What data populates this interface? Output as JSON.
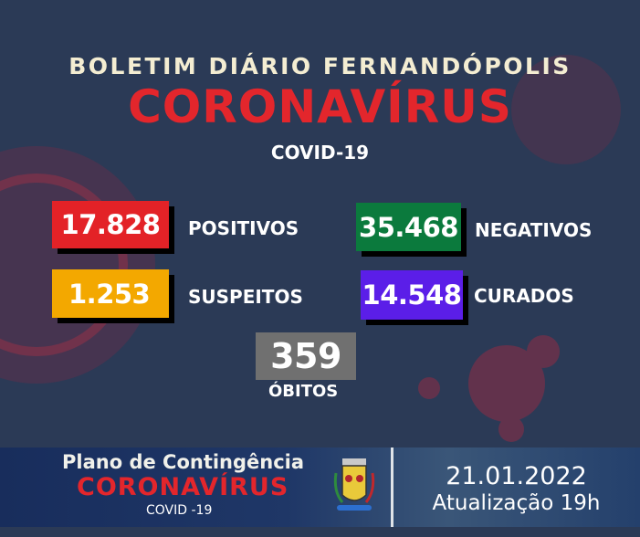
{
  "header": {
    "title": "BOLETIM DIÁRIO FERNANDÓPOLIS",
    "main": "CORONAVÍRUS",
    "sub": "COVID-19"
  },
  "stats": [
    {
      "value": "17.828",
      "label": "POSITIVOS",
      "color": "#e32227"
    },
    {
      "value": "35.468",
      "label": "NEGATIVOS",
      "color": "#0b7a3d"
    },
    {
      "value": "1.253",
      "label": "SUSPEITOS",
      "color": "#f3a800"
    },
    {
      "value": "14.548",
      "label": "CURADOS",
      "color": "#5b1ee8"
    },
    {
      "value": "359",
      "label": "ÓBITOS",
      "color": "#707070"
    }
  ],
  "footer": {
    "plan": "Plano de Contingência",
    "main": "CORONAVÍRUS",
    "sub": "COVID -19",
    "date": "21.01.2022",
    "update": "Atualização 19h",
    "crest_icon": "municipal-coat-of-arms"
  }
}
